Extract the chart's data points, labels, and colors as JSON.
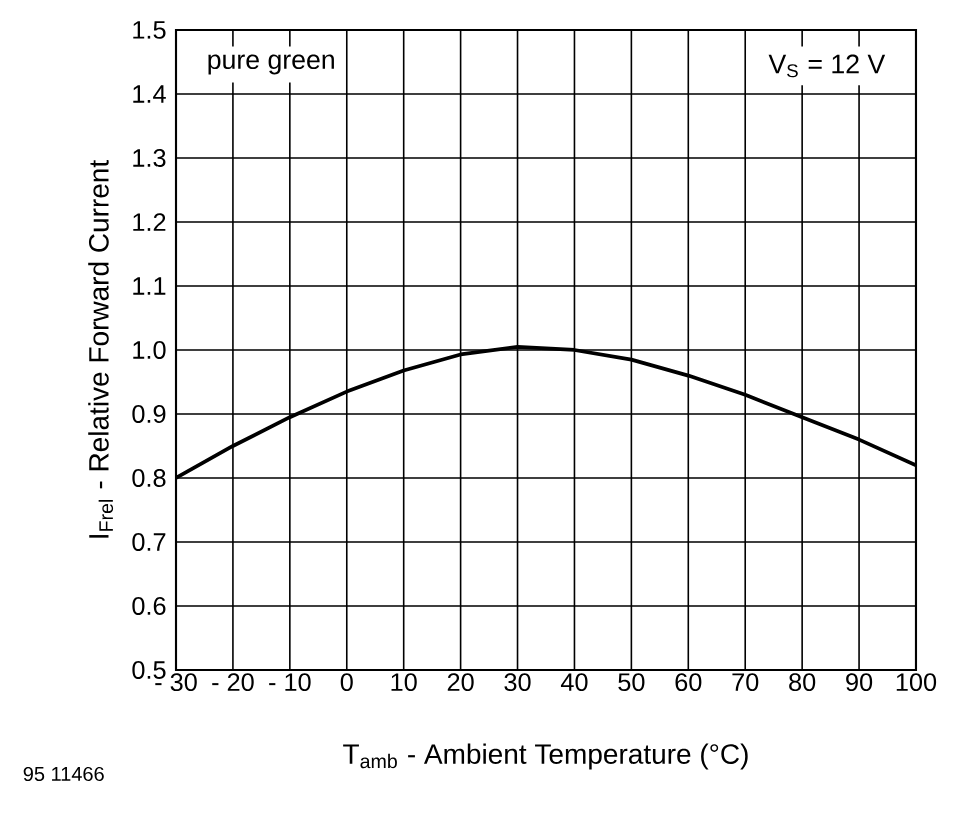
{
  "chart_data": {
    "type": "line",
    "xlabel": "T$_{amb}$ - Ambient Temperature (°C)",
    "ylabel": "I$_{Frel}$ - Relative Forward Current",
    "annotations": [
      "pure green",
      "V$_{S}$ = 12 V",
      "95 11466"
    ],
    "x": [
      -30,
      -20,
      -10,
      0,
      10,
      20,
      30,
      40,
      50,
      60,
      70,
      80,
      90,
      100
    ],
    "series": [
      {
        "color": "#000000",
        "values": [
          0.8,
          0.85,
          0.895,
          0.935,
          0.968,
          0.993,
          1.005,
          1.0,
          0.985,
          0.96,
          0.93,
          0.895,
          0.86,
          0.82
        ]
      }
    ],
    "xlim": [
      -30,
      100
    ],
    "ylim": [
      0.5,
      1.5
    ],
    "xticks": [
      {
        "value": -30,
        "label": "- 30"
      },
      {
        "value": -20,
        "label": "- 20"
      },
      {
        "value": -10,
        "label": "- 10"
      },
      0,
      10,
      20,
      30,
      40,
      50,
      60,
      70,
      80,
      90,
      100
    ],
    "yticks": [
      0.5,
      0.6,
      0.7,
      0.8,
      0.9,
      {
        "value": 1.0,
        "label": "1.0"
      },
      1.1,
      1.2,
      1.3,
      1.4,
      1.5
    ],
    "grid": true,
    "marker": "none",
    "line_style": "solid"
  }
}
